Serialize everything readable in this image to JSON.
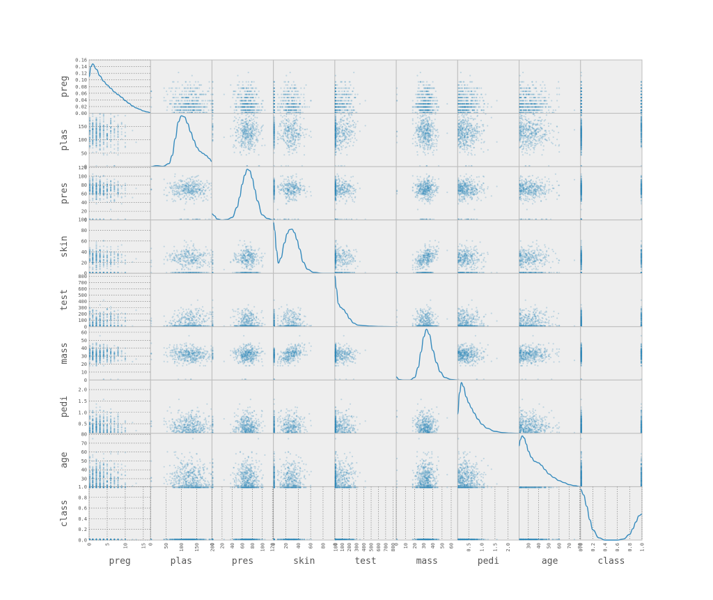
{
  "chart_data": {
    "type": "scatter-matrix",
    "variables": [
      "preg",
      "plas",
      "pres",
      "skin",
      "test",
      "mass",
      "pedi",
      "age",
      "class"
    ],
    "diagonal": "kde",
    "grid": true,
    "colors": {
      "series": "#348abd",
      "background": "#eeeeee",
      "grid": "#555555",
      "border": "#bcbcbc",
      "text": "#555555"
    },
    "x_ticks": {
      "preg": [
        "0",
        "5",
        "10",
        "15"
      ],
      "plas": [
        "0",
        "50",
        "100",
        "150",
        "200"
      ],
      "pres": [
        "0",
        "20",
        "40",
        "60",
        "80",
        "100",
        "120"
      ],
      "skin": [
        "0",
        "20",
        "40",
        "60",
        "80",
        "100"
      ],
      "test": [
        "0",
        "100",
        "200",
        "300",
        "400",
        "500",
        "600",
        "700",
        "800"
      ],
      "mass": [
        "0",
        "10",
        "20",
        "30",
        "40",
        "50",
        "60"
      ],
      "pedi": [
        "0.5",
        "1.0",
        "1.5",
        "2.0"
      ],
      "age": [
        "20",
        "30",
        "40",
        "50",
        "60",
        "70",
        "80"
      ],
      "class": [
        "0.0",
        "0.2",
        "0.4",
        "0.6",
        "0.8",
        "1.0"
      ]
    },
    "y_ticks": {
      "preg": [
        "0.00",
        "0.02",
        "0.04",
        "0.06",
        "0.08",
        "0.10",
        "0.12",
        "0.14",
        "0.16"
      ],
      "plas": [
        "0",
        "50",
        "100",
        "150"
      ],
      "pres": [
        "0",
        "20",
        "40",
        "60",
        "80",
        "100",
        "120"
      ],
      "skin": [
        "0",
        "20",
        "40",
        "60",
        "80",
        "100"
      ],
      "test": [
        "0",
        "100",
        "200",
        "300",
        "400",
        "500",
        "600",
        "700",
        "800"
      ],
      "mass": [
        "0",
        "10",
        "20",
        "30",
        "40",
        "50",
        "60"
      ],
      "pedi": [
        "0.5",
        "1.0",
        "1.5",
        "2.0"
      ],
      "age": [
        "20",
        "30",
        "40",
        "50",
        "60",
        "70",
        "80"
      ],
      "class": [
        "0.0",
        "0.2",
        "0.4",
        "0.6",
        "0.8",
        "1.0"
      ]
    },
    "ranges": {
      "preg": [
        0,
        17
      ],
      "plas": [
        0,
        199
      ],
      "pres": [
        0,
        122
      ],
      "skin": [
        0,
        99
      ],
      "test": [
        0,
        846
      ],
      "mass": [
        0,
        67.1
      ],
      "pedi": [
        0.078,
        2.42
      ],
      "age": [
        21,
        81
      ],
      "class": [
        0,
        1
      ]
    },
    "y_range_preg_density": [
      0,
      0.16
    ],
    "kde": {
      "preg": {
        "x": [
          0,
          0.5,
          1,
          2,
          3,
          4,
          5,
          6,
          7,
          8,
          9,
          10,
          11,
          12,
          13,
          14,
          15,
          16,
          17
        ],
        "y": [
          0.11,
          0.14,
          0.148,
          0.132,
          0.112,
          0.096,
          0.085,
          0.075,
          0.064,
          0.056,
          0.048,
          0.038,
          0.03,
          0.022,
          0.016,
          0.012,
          0.007,
          0.004,
          0.002
        ]
      },
      "plas": {
        "x": [
          0,
          20,
          40,
          60,
          70,
          80,
          90,
          100,
          110,
          120,
          130,
          140,
          150,
          160,
          170,
          180,
          190,
          199
        ],
        "y": [
          0.0,
          0.02,
          0.005,
          0.06,
          0.22,
          0.55,
          0.88,
          1.0,
          0.98,
          0.85,
          0.68,
          0.52,
          0.38,
          0.3,
          0.26,
          0.22,
          0.16,
          0.1
        ]
      },
      "pres": {
        "x": [
          0,
          5,
          10,
          20,
          30,
          40,
          50,
          55,
          60,
          65,
          70,
          75,
          80,
          85,
          90,
          100,
          110,
          122
        ],
        "y": [
          0.12,
          0.08,
          0.02,
          0.0,
          0.01,
          0.05,
          0.25,
          0.45,
          0.7,
          0.88,
          1.0,
          0.97,
          0.82,
          0.6,
          0.38,
          0.1,
          0.03,
          0.0
        ]
      },
      "skin": {
        "x": [
          0,
          2,
          5,
          8,
          12,
          18,
          22,
          26,
          30,
          34,
          38,
          42,
          48,
          55,
          65,
          80,
          99
        ],
        "y": [
          1.0,
          0.85,
          0.45,
          0.2,
          0.3,
          0.6,
          0.78,
          0.86,
          0.87,
          0.8,
          0.66,
          0.48,
          0.22,
          0.08,
          0.02,
          0.0,
          0.0
        ]
      },
      "test": {
        "x": [
          0,
          20,
          50,
          80,
          120,
          160,
          200,
          260,
          320,
          400,
          500,
          600,
          700,
          846
        ],
        "y": [
          1.0,
          0.75,
          0.45,
          0.38,
          0.34,
          0.26,
          0.16,
          0.07,
          0.03,
          0.02,
          0.01,
          0.005,
          0.002,
          0.0
        ]
      },
      "mass": {
        "x": [
          0,
          3,
          8,
          15,
          20,
          24,
          27,
          30,
          33,
          36,
          40,
          44,
          48,
          53,
          60,
          67.1
        ],
        "y": [
          0.06,
          0.01,
          0.0,
          0.0,
          0.05,
          0.25,
          0.55,
          0.85,
          1.0,
          0.9,
          0.58,
          0.34,
          0.16,
          0.05,
          0.01,
          0.0
        ]
      },
      "pedi": {
        "x": [
          0.078,
          0.15,
          0.22,
          0.3,
          0.4,
          0.5,
          0.6,
          0.7,
          0.85,
          1.0,
          1.2,
          1.5,
          1.8,
          2.1,
          2.42
        ],
        "y": [
          0.38,
          0.8,
          1.0,
          0.92,
          0.72,
          0.6,
          0.5,
          0.4,
          0.28,
          0.18,
          0.1,
          0.04,
          0.015,
          0.005,
          0.0
        ]
      },
      "age": {
        "x": [
          21,
          22,
          24,
          26,
          28,
          30,
          33,
          36,
          40,
          43,
          46,
          50,
          55,
          60,
          65,
          70,
          75,
          81
        ],
        "y": [
          0.8,
          0.92,
          1.0,
          0.96,
          0.84,
          0.7,
          0.58,
          0.5,
          0.47,
          0.42,
          0.34,
          0.25,
          0.18,
          0.12,
          0.08,
          0.04,
          0.02,
          0.0
        ]
      },
      "class": {
        "x": [
          0,
          0.05,
          0.1,
          0.15,
          0.2,
          0.3,
          0.4,
          0.5,
          0.6,
          0.7,
          0.8,
          0.85,
          0.9,
          0.95,
          1.0
        ],
        "y": [
          0.9,
          0.8,
          0.6,
          0.36,
          0.18,
          0.04,
          0.0,
          0.0,
          0.0,
          0.02,
          0.1,
          0.2,
          0.32,
          0.43,
          0.46
        ]
      }
    }
  }
}
